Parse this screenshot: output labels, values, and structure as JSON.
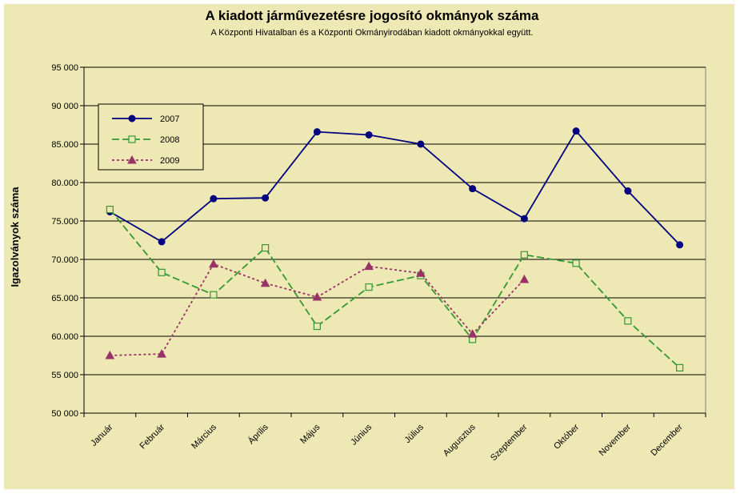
{
  "chart_data": {
    "type": "line",
    "title": "A  kiadott járművezetésre  jogosító okmányok száma",
    "subtitle": "A  Központi Hivatalban és a Központi Okmányirodában kiadott okmányokkal együtt.",
    "xlabel": "",
    "ylabel": "Igazolványok száma",
    "categories": [
      "Január",
      "Február",
      "Március",
      "Április",
      "Május",
      "Június",
      "Július",
      "Augusztus",
      "Szeptember",
      "Október",
      "November",
      "December"
    ],
    "ylim": [
      50000,
      95000
    ],
    "yticks": [
      50000,
      55000,
      60000,
      65000,
      70000,
      75000,
      80000,
      85000,
      90000,
      95000
    ],
    "ytick_labels": [
      "50 000",
      "55 000",
      "60.000",
      "65.000",
      "70.000",
      "75.000",
      "80.000",
      "85.000",
      "90 000",
      "95 000"
    ],
    "grid": true,
    "legend_position": "top-left",
    "series": [
      {
        "name": "2007",
        "color": "#000080",
        "marker": "circle",
        "dash": "solid",
        "values": [
          76200,
          72300,
          77900,
          78000,
          86600,
          86200,
          85000,
          79200,
          75300,
          86700,
          78900,
          71900
        ]
      },
      {
        "name": "2008",
        "color": "#339933",
        "marker": "square",
        "dash": "dashed",
        "values": [
          76500,
          68300,
          65400,
          71500,
          61300,
          66400,
          67900,
          59600,
          70600,
          69500,
          62000,
          55900
        ]
      },
      {
        "name": "2009",
        "color": "#993366",
        "marker": "triangle",
        "dash": "dotted",
        "values": [
          57500,
          57700,
          69400,
          66900,
          65100,
          69100,
          68200,
          60300,
          67400,
          null,
          null,
          null
        ]
      }
    ]
  }
}
